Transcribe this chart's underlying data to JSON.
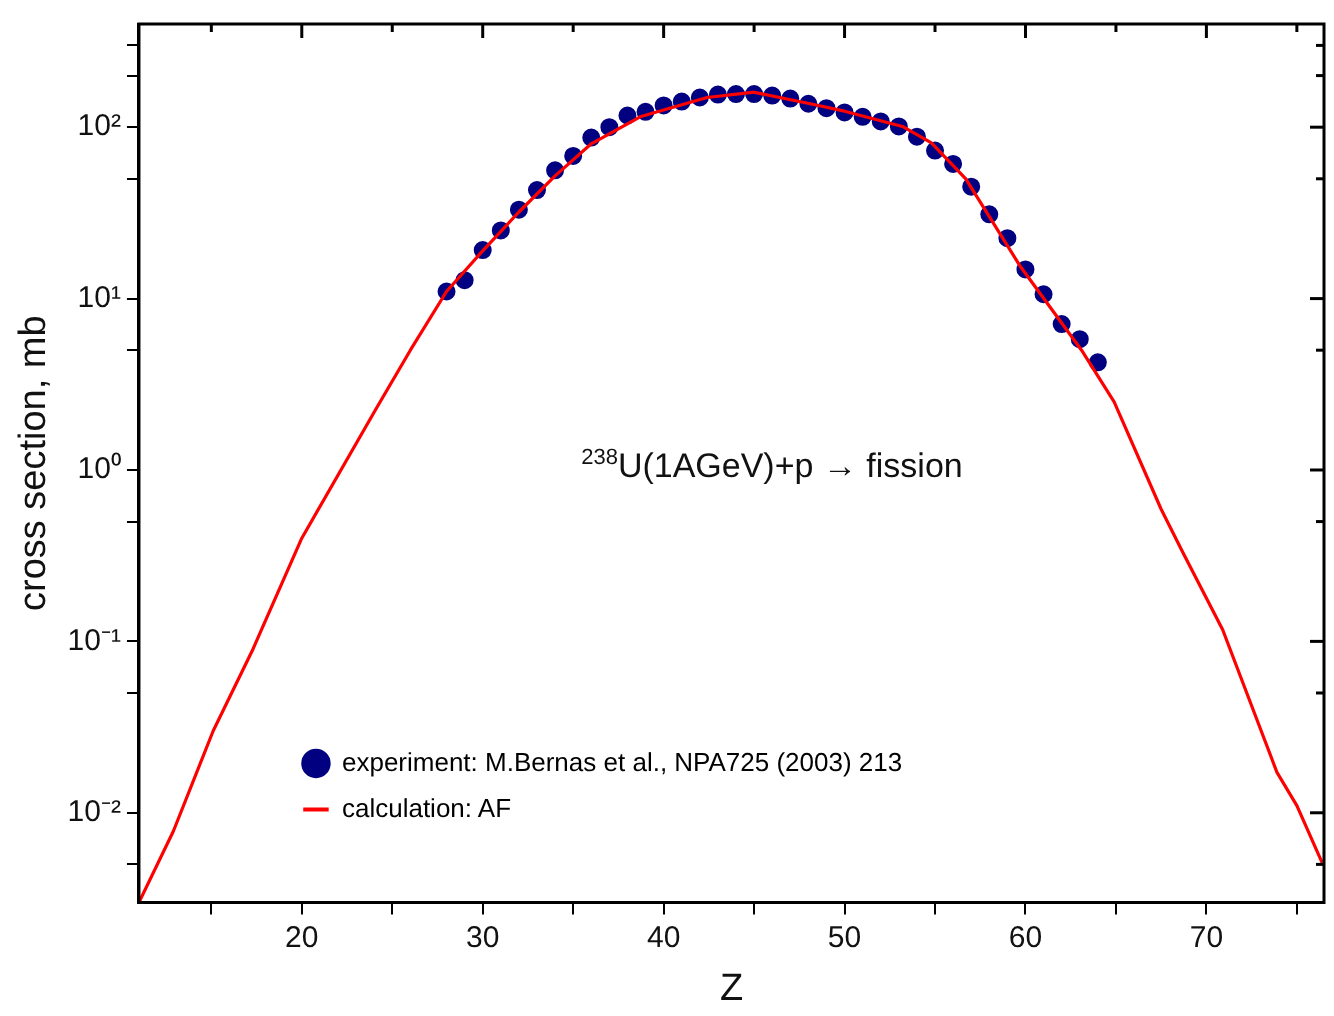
{
  "chart_data": {
    "type": "scatter",
    "xlabel": "Z",
    "ylabel": "cross section, mb",
    "log": "y",
    "grid": false,
    "legend": "bottom left",
    "marker": "circle",
    "annotations": [
      "$^{238}$U(1AGeV)+p → fission"
    ],
    "xlim": [
      11,
      76.5
    ],
    "xticks": [
      {
        "value": 15,
        "label": null
      },
      20,
      {
        "value": 25,
        "label": null
      },
      30,
      {
        "value": 35,
        "label": null
      },
      40,
      {
        "value": 45,
        "label": null
      },
      50,
      {
        "value": 55,
        "label": null
      },
      60,
      {
        "value": 65,
        "label": null
      },
      70,
      {
        "value": 75,
        "label": null
      }
    ],
    "ylim": [
      0.003,
      400
    ],
    "yticks": [
      {
        "value": 0.01,
        "label": "10⁻²"
      },
      {
        "value": 0.1,
        "label": "10⁻¹"
      },
      {
        "value": 1,
        "label": "10⁰"
      },
      {
        "value": 10,
        "label": "10¹"
      },
      {
        "value": 100,
        "label": "10²"
      },
      {
        "value": 0.005,
        "label": null
      },
      {
        "value": 0.05,
        "label": null
      },
      {
        "value": 0.5,
        "label": null
      },
      {
        "value": 5,
        "label": null
      },
      {
        "value": 50,
        "label": null
      },
      {
        "value": 200,
        "label": null
      },
      {
        "value": 300,
        "label": null
      }
    ],
    "series": [
      {
        "name": "experiment: M.Bernas et al., NPA725 (2003) 213",
        "color": "#000080",
        "x": [
          28,
          29,
          30,
          31,
          32,
          33,
          34,
          35,
          36,
          37,
          38,
          39,
          40,
          41,
          42,
          43,
          44,
          45,
          46,
          47,
          48,
          49,
          50,
          51,
          52,
          53,
          54,
          55,
          56,
          57,
          58,
          59,
          60,
          61,
          62,
          63,
          64
        ],
        "values": [
          11,
          12.8,
          19.2,
          25,
          33,
          43,
          56,
          68,
          87,
          100,
          117,
          123,
          134,
          141,
          149,
          155,
          156,
          156,
          153,
          147,
          137,
          129,
          122,
          115,
          108,
          101,
          88,
          73,
          61,
          45,
          31,
          22.5,
          14.8,
          10.6,
          7.1,
          5.8,
          4.25
        ]
      },
      {
        "name": "calculation: AF",
        "type": "line",
        "color": "#ff0000",
        "marker": "none",
        "x": [
          11,
          12.9,
          15.1,
          17.3,
          20,
          24.1,
          26,
          28,
          30,
          32,
          34,
          36,
          38.7,
          42.4,
          45,
          48.1,
          50,
          53.2,
          54.8,
          56.7,
          59.7,
          63.1,
          64.9,
          67.5,
          68.7,
          70.9,
          73.9,
          75,
          76.4
        ],
        "values": [
          0.003,
          0.0078,
          0.03,
          0.09,
          0.4,
          2.27,
          5,
          11,
          19,
          32,
          52,
          80,
          115,
          149,
          160,
          137,
          124,
          101,
          81,
          50,
          15.5,
          5,
          2.5,
          0.59,
          0.33,
          0.117,
          0.0172,
          0.011,
          0.0051
        ]
      }
    ]
  }
}
